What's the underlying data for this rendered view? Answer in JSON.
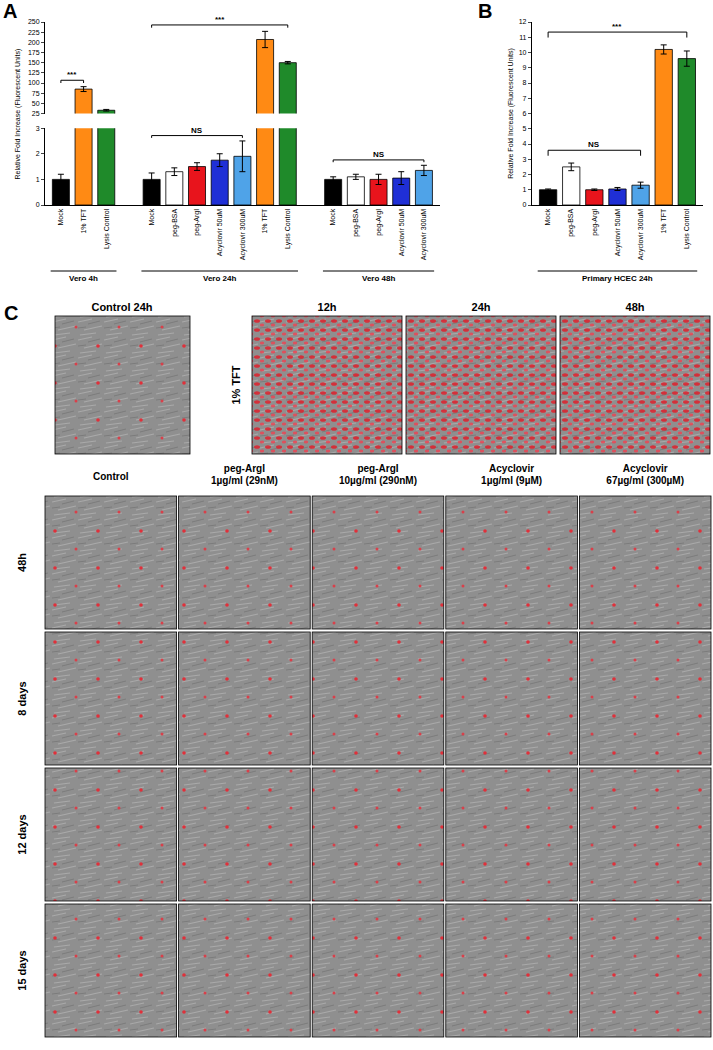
{
  "chart_data": [
    {
      "type": "bar",
      "title": "A",
      "y_label": "Relative Fold Increase (Fluorescent Units)",
      "ylim": [
        0,
        3
      ],
      "yticks": [
        0,
        1,
        2,
        3
      ],
      "y2lim": [
        25,
        250
      ],
      "y2ticks": [
        25,
        50,
        75,
        100,
        125,
        150,
        175,
        200,
        225,
        250
      ],
      "groups": [
        {
          "label": "Vero 4h",
          "categories": [
            "Mock",
            "1% TFT",
            "Lysis Control"
          ],
          "values": [
            1.0,
            85,
            33
          ],
          "errors": [
            0.2,
            6,
            2
          ],
          "colors": [
            "#000000",
            "#ff8a14",
            "#1f8a2a"
          ]
        },
        {
          "label": "Vero 24h",
          "categories": [
            "Mock",
            "peg-BSA",
            "peg-ArgI",
            "Acyclovir 50uM",
            "Acyclovir 300uM",
            "1% TFT",
            "Lysis Control"
          ],
          "values": [
            1.0,
            1.3,
            1.5,
            1.75,
            1.9,
            207,
            150
          ],
          "errors": [
            0.25,
            0.15,
            0.15,
            0.25,
            0.6,
            20,
            3
          ],
          "colors": [
            "#000000",
            "#ffffff",
            "#e8141c",
            "#1f2fd6",
            "#4fa3e8",
            "#ff8a14",
            "#1f8a2a"
          ]
        },
        {
          "label": "Vero 48h",
          "categories": [
            "Mock",
            "peg-BSA",
            "peg-ArgI",
            "Acyclovir 50uM",
            "Acyclovir 300uM"
          ],
          "values": [
            1.0,
            1.1,
            1.0,
            1.05,
            1.35
          ],
          "errors": [
            0.1,
            0.1,
            0.2,
            0.25,
            0.2
          ],
          "colors": [
            "#000000",
            "#ffffff",
            "#e8141c",
            "#1f2fd6",
            "#4fa3e8"
          ]
        }
      ],
      "significance": [
        {
          "text": "***",
          "group": "Vero 4h",
          "from": "Mock",
          "to": "1% TFT"
        },
        {
          "text": "NS",
          "group": "Vero 24h",
          "from": "Mock",
          "to": "Acyclovir 300uM"
        },
        {
          "text": "***",
          "group": "Vero 24h",
          "from": "Mock",
          "to": "Lysis Control"
        },
        {
          "text": "NS",
          "group": "Vero 48h",
          "from": "Mock",
          "to": "Acyclovir 300uM"
        }
      ]
    },
    {
      "type": "bar",
      "title": "B",
      "y_label": "Relative Fold Increase (Fluorescent Units)",
      "ylim": [
        0,
        12
      ],
      "yticks": [
        0,
        1,
        2,
        3,
        4,
        5,
        6,
        7,
        8,
        9,
        10,
        11,
        12
      ],
      "groups": [
        {
          "label": "Primary HCEC 24h",
          "categories": [
            "Mock",
            "peg-BSA",
            "peg-ArgI",
            "Acyclovir 50uM",
            "Acyclovir 300uM",
            "1% TFT",
            "Lysis Control"
          ],
          "values": [
            1.0,
            2.5,
            1.0,
            1.05,
            1.3,
            10.2,
            9.6
          ],
          "errors": [
            0.05,
            0.25,
            0.05,
            0.1,
            0.2,
            0.3,
            0.5
          ],
          "colors": [
            "#000000",
            "#ffffff",
            "#e8141c",
            "#1f2fd6",
            "#4fa3e8",
            "#ff8a14",
            "#1f8a2a"
          ]
        }
      ],
      "significance": [
        {
          "text": "NS",
          "group": "Primary HCEC 24h",
          "from": "Mock",
          "to": "Acyclovir 300uM"
        },
        {
          "text": "***",
          "group": "Primary HCEC 24h",
          "from": "Mock",
          "to": "Lysis Control"
        }
      ]
    }
  ],
  "image_panel": {
    "title": "C",
    "top_row": {
      "control_label": "Control 24h",
      "treatment_label": "1% TFT",
      "times": [
        "12h",
        "24h",
        "48h"
      ]
    },
    "columns": [
      [
        "Control"
      ],
      [
        "peg-ArgI",
        "1µg/ml (29nM)"
      ],
      [
        "peg-ArgI",
        "10µg/ml (290nM)"
      ],
      [
        "Acyclovir",
        "1µg/ml (9µM)"
      ],
      [
        "Acyclovir",
        "67µg/ml (300µM)"
      ]
    ],
    "rows": [
      "48h",
      "8 days",
      "12 days",
      "15 days"
    ]
  }
}
